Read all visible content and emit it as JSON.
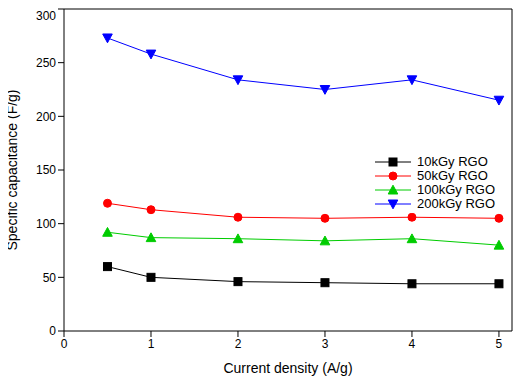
{
  "chart_data": {
    "type": "line",
    "x_label": "Current density (A/g)",
    "y_label": "Specific capacitance (F/g)",
    "x": [
      0.5,
      1,
      2,
      3,
      4,
      5
    ],
    "series": [
      {
        "name": "10kGy RGO",
        "color": "#000000",
        "marker": "square",
        "values": [
          60,
          50,
          46,
          45,
          44,
          44
        ]
      },
      {
        "name": "50kGy RGO",
        "color": "#ff0000",
        "marker": "circle",
        "values": [
          119,
          113,
          106,
          105,
          106,
          105
        ]
      },
      {
        "name": "100kGy RGO",
        "color": "#00cc00",
        "marker": "triangle-up",
        "values": [
          92,
          87,
          86,
          84,
          86,
          80
        ]
      },
      {
        "name": "200kGy RGO",
        "color": "#0000ff",
        "marker": "triangle-down",
        "values": [
          273,
          258,
          234,
          225,
          234,
          215
        ]
      }
    ],
    "xlim": [
      0,
      5.15
    ],
    "xticks": [
      0,
      1,
      2,
      3,
      4,
      5
    ],
    "ylim": [
      0,
      300
    ],
    "yticks": [
      0,
      50,
      100,
      150,
      200,
      250,
      300
    ],
    "grid": false,
    "legend": "right"
  }
}
